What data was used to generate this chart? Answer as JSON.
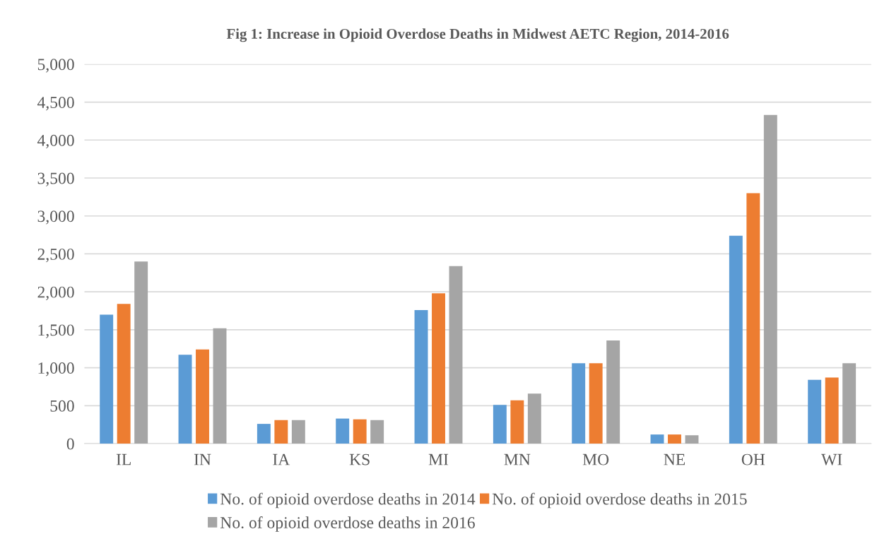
{
  "chart_data": {
    "type": "bar",
    "title": "Fig 1: Increase in Opioid Overdose Deaths in Midwest AETC Region, 2014-2016",
    "categories": [
      "IL",
      "IN",
      "IA",
      "KS",
      "MI",
      "MN",
      "MO",
      "NE",
      "OH",
      "WI"
    ],
    "series": [
      {
        "name": "No. of opioid overdose deaths in 2014",
        "color": "#5b9bd5",
        "values": [
          1700,
          1170,
          260,
          330,
          1760,
          510,
          1060,
          120,
          2740,
          840
        ]
      },
      {
        "name": "No. of opioid overdose deaths in 2015",
        "color": "#ed7d31",
        "values": [
          1840,
          1240,
          310,
          320,
          1980,
          570,
          1060,
          120,
          3300,
          870
        ]
      },
      {
        "name": "No. of opioid overdose deaths in 2016",
        "color": "#a5a5a5",
        "values": [
          2400,
          1520,
          310,
          310,
          2340,
          660,
          1360,
          110,
          4330,
          1060
        ]
      }
    ],
    "ylim": [
      0,
      5000
    ],
    "yticks": [
      {
        "value": 0,
        "label": "0"
      },
      {
        "value": 500,
        "label": "500"
      },
      {
        "value": 1000,
        "label": "1,000"
      },
      {
        "value": 1500,
        "label": "1,500"
      },
      {
        "value": 2000,
        "label": "2,000"
      },
      {
        "value": 2500,
        "label": "2,500"
      },
      {
        "value": 3000,
        "label": "3,000"
      },
      {
        "value": 3500,
        "label": "3,500"
      },
      {
        "value": 4000,
        "label": "4,000"
      },
      {
        "value": 4500,
        "label": "4,500"
      },
      {
        "value": 5000,
        "label": "5,000"
      }
    ],
    "grid": "y",
    "legend": "bottom"
  }
}
